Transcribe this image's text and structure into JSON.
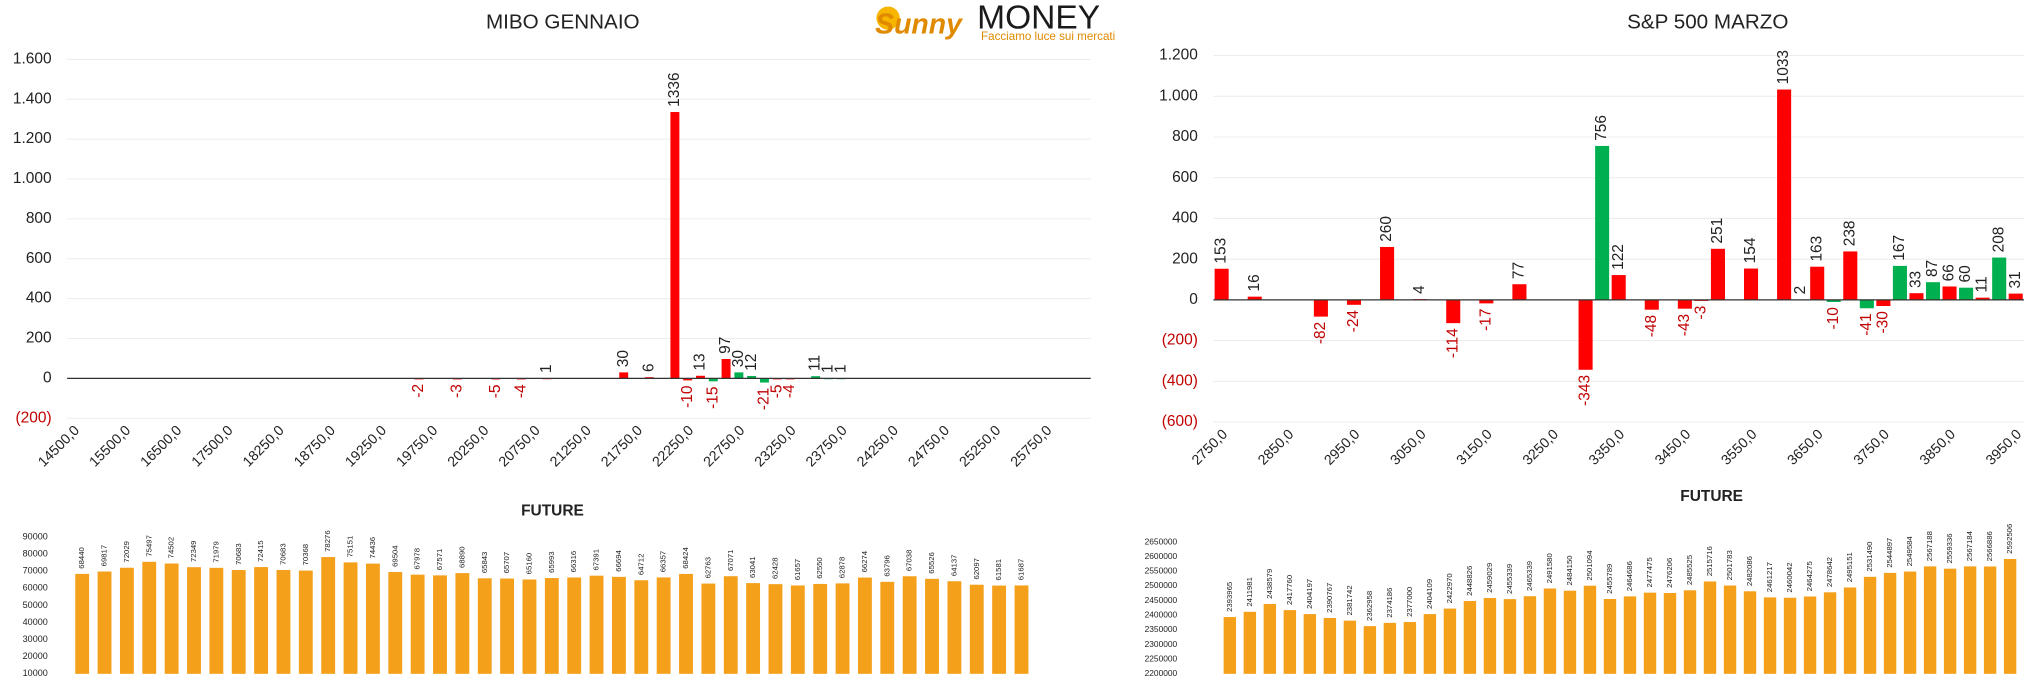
{
  "logo": {
    "brand": "Sunny",
    "name": "MONEY",
    "tagline": "Facciamo luce sui mercati"
  },
  "chart_data": [
    {
      "type": "bar",
      "title": "MIBO GENNAIO",
      "categories": [
        "14500,0",
        null,
        null,
        null,
        "15500,0",
        null,
        null,
        null,
        "16500,0",
        null,
        null,
        null,
        "17500,0",
        null,
        null,
        null,
        "18250,0",
        null,
        null,
        null,
        "18750,0",
        null,
        null,
        null,
        "19250,0",
        null,
        null,
        null,
        "19750,0",
        null,
        null,
        null,
        "20250,0",
        null,
        null,
        null,
        "20750,0",
        null,
        null,
        null,
        "21250,0",
        null,
        null,
        null,
        "21750,0",
        null,
        null,
        null,
        "22250,0",
        null,
        null,
        null,
        "22750,0",
        null,
        null,
        null,
        "23250,0",
        null,
        null,
        null,
        "23750,0",
        null,
        null,
        null,
        "24250,0",
        null,
        null,
        null,
        "24750,0",
        null,
        null,
        null,
        "25250,0",
        null,
        null,
        null,
        "25750,0",
        null,
        null,
        null
      ],
      "values": [
        null,
        null,
        null,
        null,
        null,
        null,
        null,
        null,
        null,
        null,
        null,
        null,
        null,
        null,
        null,
        null,
        null,
        null,
        null,
        null,
        null,
        null,
        null,
        null,
        null,
        null,
        null,
        -2,
        null,
        null,
        -3,
        null,
        null,
        -5,
        null,
        -4,
        null,
        1,
        null,
        null,
        null,
        null,
        null,
        30,
        null,
        6,
        null,
        1336,
        -10,
        13,
        -15,
        97,
        30,
        12,
        -21,
        -5,
        -4,
        null,
        11,
        1,
        1,
        null,
        null,
        null,
        null,
        null,
        null,
        null,
        null,
        null,
        null,
        null,
        null,
        null,
        null,
        null,
        null,
        null,
        null,
        null
      ],
      "colors": [
        null,
        null,
        null,
        null,
        null,
        null,
        null,
        null,
        null,
        null,
        null,
        null,
        null,
        null,
        null,
        null,
        null,
        null,
        null,
        null,
        null,
        null,
        null,
        null,
        null,
        null,
        null,
        "#ff0000",
        null,
        null,
        "#ff0000",
        null,
        null,
        "#ff0000",
        null,
        "#ff0000",
        null,
        "#ff0000",
        null,
        null,
        null,
        null,
        null,
        "#ff0000",
        null,
        "#ff0000",
        null,
        "#ff0000",
        "#ff0000",
        "#ff0000",
        "#00b050",
        "#ff0000",
        "#00b050",
        "#00b050",
        "#00b050",
        "#ff0000",
        "#ff0000",
        null,
        "#00b050",
        "#00b050",
        "#00b050",
        null,
        null,
        null,
        null,
        null,
        null,
        null,
        null,
        null,
        null,
        null,
        null,
        null,
        null,
        null,
        null,
        null,
        null,
        null
      ],
      "ylim": [
        -200,
        1600
      ],
      "yticks": [
        {
          "value": -200,
          "label": "(200)"
        },
        0,
        200,
        400,
        600,
        800,
        {
          "value": 1000,
          "label": "1.000"
        },
        {
          "value": 1200,
          "label": "1.200"
        },
        {
          "value": 1400,
          "label": "1.400"
        },
        {
          "value": 1600,
          "label": "1.600"
        }
      ],
      "grid": true
    },
    {
      "type": "bar",
      "title": "S&P 500 MARZO",
      "categories": [
        "2750,0",
        null,
        null,
        null,
        "2850,0",
        null,
        null,
        null,
        "2950,0",
        null,
        null,
        null,
        "3050,0",
        null,
        null,
        null,
        "3150,0",
        null,
        null,
        null,
        "3250,0",
        null,
        null,
        null,
        "3350,0",
        null,
        null,
        null,
        "3450,0",
        null,
        null,
        null,
        "3550,0",
        null,
        null,
        null,
        "3650,0",
        null,
        null,
        null,
        "3750,0",
        null,
        null,
        null,
        "3850,0",
        null,
        null,
        null,
        "3950,0"
      ],
      "values": [
        153,
        null,
        16,
        null,
        null,
        null,
        -82,
        null,
        -24,
        null,
        260,
        null,
        4,
        null,
        -114,
        null,
        -17,
        null,
        77,
        null,
        null,
        null,
        -343,
        756,
        122,
        null,
        -48,
        null,
        -43,
        -3,
        251,
        null,
        154,
        null,
        1033,
        2,
        163,
        -10,
        238,
        -41,
        -30,
        167,
        33,
        87,
        66,
        60,
        11,
        208,
        31
      ],
      "colors": [
        "#ff0000",
        null,
        "#ff0000",
        null,
        null,
        null,
        "#ff0000",
        null,
        "#ff0000",
        null,
        "#ff0000",
        null,
        "#ff0000",
        null,
        "#ff0000",
        null,
        "#ff0000",
        null,
        "#ff0000",
        null,
        null,
        null,
        "#ff0000",
        "#00b050",
        "#ff0000",
        null,
        "#ff0000",
        null,
        "#ff0000",
        "#ff0000",
        "#ff0000",
        null,
        "#ff0000",
        null,
        "#ff0000",
        "#ff0000",
        "#ff0000",
        "#00b050",
        "#ff0000",
        "#00b050",
        "#ff0000",
        "#00b050",
        "#ff0000",
        "#00b050",
        "#ff0000",
        "#00b050",
        "#ff0000",
        "#00b050",
        "#ff0000"
      ],
      "ylim": [
        -600,
        1200
      ],
      "yticks": [
        {
          "value": -600,
          "label": "(600)"
        },
        {
          "value": -400,
          "label": "(400)"
        },
        {
          "value": -200,
          "label": "(200)"
        },
        0,
        200,
        400,
        600,
        800,
        {
          "value": 1000,
          "label": "1.000"
        },
        {
          "value": 1200,
          "label": "1.200"
        }
      ],
      "grid": true
    },
    {
      "type": "bar",
      "title": "FUTURE",
      "values": [
        68440,
        69817,
        72029,
        75497,
        74502,
        72349,
        71979,
        70683,
        72415,
        70683,
        70368,
        78276,
        75151,
        74436,
        69504,
        67978,
        67571,
        68890,
        65843,
        65707,
        65160,
        65993,
        66316,
        67391,
        66694,
        64712,
        66357,
        68424,
        62763,
        67071,
        63041,
        62428,
        61657,
        62550,
        62878,
        66274,
        63796,
        67038,
        65526,
        64137,
        62097,
        61581,
        61687
      ],
      "color": "#f5a01a",
      "ylim": [
        10000,
        90000
      ],
      "yticks": [
        10000,
        20000,
        30000,
        40000,
        50000,
        60000,
        70000,
        80000,
        90000
      ],
      "grid": false
    },
    {
      "type": "bar",
      "title": "FUTURE",
      "values": [
        2393965,
        2411981,
        2438579,
        2417760,
        2404197,
        2390767,
        2381742,
        2362958,
        2374186,
        2377000,
        2404109,
        2422970,
        2448826,
        2459029,
        2455339,
        2465339,
        2491580,
        2484150,
        2501094,
        2455789,
        2464686,
        2477475,
        2476206,
        2485525,
        2515716,
        2501783,
        2482086,
        2461217,
        2460042,
        2464275,
        2478642,
        2495151,
        2531490,
        2544897,
        2549584,
        2567188,
        2559336,
        2567184,
        2566886,
        2592506
      ],
      "color": "#f5a01a",
      "ylim": [
        2200000,
        2650000
      ],
      "yticks": [
        2200000,
        2250000,
        2300000,
        2350000,
        2400000,
        2450000,
        2500000,
        2550000,
        2600000,
        2650000
      ],
      "grid": false
    }
  ]
}
